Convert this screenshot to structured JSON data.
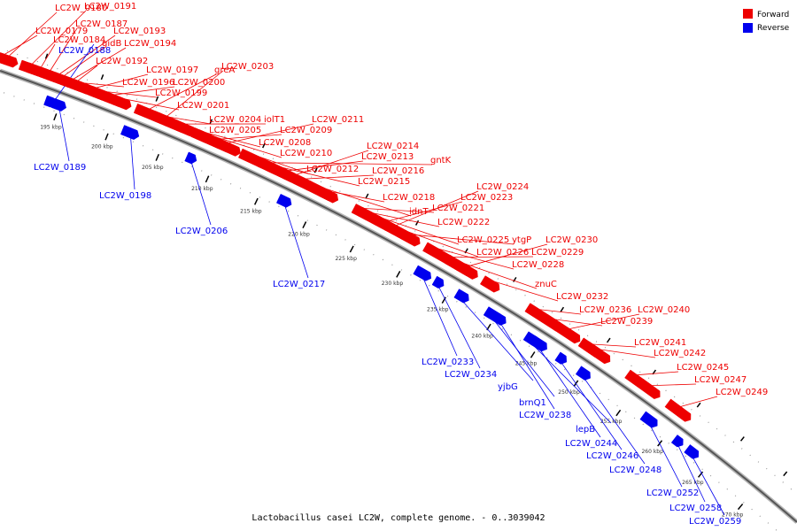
{
  "caption": "Lactobacillus casei LC2W, complete genome. - 0..3039042",
  "legend": [
    {
      "label": "Forward",
      "color": "#ee0000"
    },
    {
      "label": "Reverse",
      "color": "#0000ee"
    }
  ],
  "colors": {
    "forward": "#ee0000",
    "reverse": "#0000ee",
    "backbone": "#888888",
    "tick": "#000000"
  },
  "ticks": [
    "195 kbp",
    "200 kbp",
    "205 kbp",
    "210 kbp",
    "215 kbp",
    "220 kbp",
    "225 kbp",
    "230 kbp",
    "235 kbp",
    "240 kbp",
    "245 kbp",
    "250 kbp",
    "255 kbp",
    "260 kbp",
    "265 kbp",
    "270 kbp"
  ],
  "forward_labels": [
    "LC2W_0180",
    "LC2W_0191",
    "LC2W_0179",
    "LC2W_0187",
    "LC2W_0193",
    "LC2W_0184",
    "gidB",
    "LC2W_0194",
    "LC2W_0203",
    "LC2W_0192",
    "LC2W_0197",
    "greA",
    "LC2W_0196",
    "LC2W_0200",
    "LC2W_0199",
    "LC2W_0201",
    "iolT1",
    "LC2W_0211",
    "LC2W_0204",
    "LC2W_0205",
    "LC2W_0209",
    "LC2W_0208",
    "LC2W_0214",
    "LC2W_0210",
    "LC2W_0213",
    "gntK",
    "LC2W_0212",
    "LC2W_0216",
    "LC2W_0215",
    "LC2W_0224",
    "LC2W_0218",
    "LC2W_0223",
    "idnT",
    "LC2W_0221",
    "LC2W_0222",
    "LC2W_0225",
    "ytgP",
    "LC2W_0230",
    "LC2W_0226",
    "LC2W_0229",
    "LC2W_0228",
    "znuC",
    "LC2W_0232",
    "LC2W_0236",
    "LC2W_0240",
    "LC2W_0239",
    "LC2W_0241",
    "LC2W_0242",
    "LC2W_0245",
    "LC2W_0247",
    "LC2W_0249"
  ],
  "reverse_labels": [
    "LC2W_0188",
    "LC2W_0189",
    "LC2W_0198",
    "LC2W_0206",
    "LC2W_0217",
    "LC2W_0233",
    "LC2W_0234",
    "yjbG",
    "brnQ1",
    "LC2W_0238",
    "lepB",
    "LC2W_0244",
    "LC2W_0246",
    "LC2W_0248",
    "LC2W_0252",
    "LC2W_0258",
    "LC2W_0259"
  ]
}
